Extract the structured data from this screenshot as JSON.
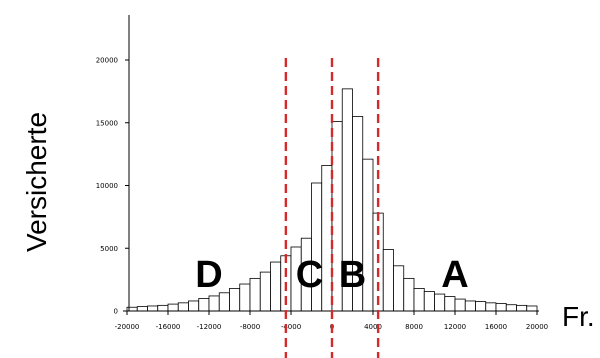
{
  "chart_data": {
    "type": "bar",
    "title": "",
    "xlabel": "Fr.",
    "ylabel": "Versicherte",
    "xlim": [
      -20000,
      20000
    ],
    "ylim": [
      0,
      20000
    ],
    "x_ticks": [
      -20000,
      -16000,
      -12000,
      -8000,
      -4000,
      0,
      4000,
      8000,
      12000,
      16000,
      20000
    ],
    "x_tick_labels": [
      "-20000",
      "-16000",
      "-12000",
      "-8000",
      "-4000",
      "0",
      "4000",
      "8000",
      "12000",
      "16000",
      "20000"
    ],
    "y_ticks": [
      0,
      5000,
      10000,
      15000,
      20000
    ],
    "y_tick_labels": [
      "0",
      "5000",
      "10000",
      "15000",
      "20000"
    ],
    "bin_width": 1000,
    "bins_start": [
      -20000,
      -19000,
      -18000,
      -17000,
      -16000,
      -15000,
      -14000,
      -13000,
      -12000,
      -11000,
      -10000,
      -9000,
      -8000,
      -7000,
      -6000,
      -5000,
      -4000,
      -3000,
      -2000,
      -1000,
      0,
      1000,
      2000,
      3000,
      4000,
      5000,
      6000,
      7000,
      8000,
      9000,
      10000,
      11000,
      12000,
      13000,
      14000,
      15000,
      16000,
      17000,
      18000,
      19000
    ],
    "values": [
      300,
      350,
      400,
      450,
      550,
      650,
      800,
      1000,
      1200,
      1450,
      1800,
      2150,
      2600,
      3100,
      3900,
      4400,
      5100,
      5800,
      10200,
      11600,
      15100,
      17700,
      15500,
      12100,
      7800,
      4900,
      3600,
      2600,
      1800,
      1550,
      1350,
      1150,
      950,
      800,
      750,
      650,
      600,
      500,
      450,
      400
    ],
    "vlines": [
      -4500,
      0,
      4500
    ],
    "vline_style": "red dashed",
    "regions": [
      {
        "label": "D",
        "x": -12000
      },
      {
        "label": "C",
        "x": -2200
      },
      {
        "label": "B",
        "x": 2000
      },
      {
        "label": "A",
        "x": 12000
      }
    ],
    "colors": {
      "bar_fill": "#ffffff",
      "bar_stroke": "#000000",
      "vline": "#d42a2a"
    },
    "grid": false,
    "legend": "none"
  }
}
